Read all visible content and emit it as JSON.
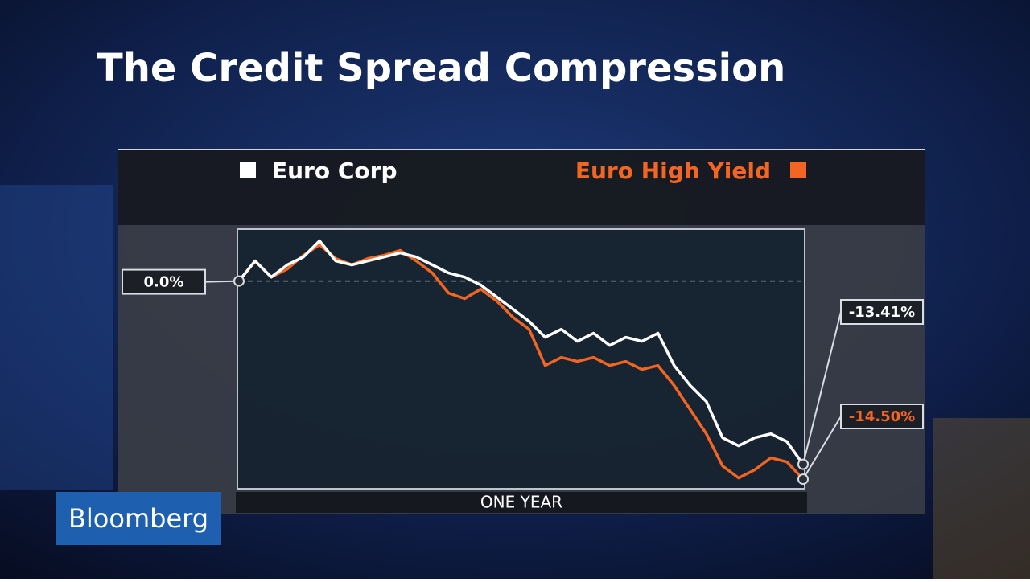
{
  "brand": "Bloomberg",
  "chart_data": {
    "type": "line",
    "title": "The Credit Spread Compression",
    "x_label": "ONE YEAR",
    "ylim": [
      -15.2,
      3.8
    ],
    "series": [
      {
        "name": "Euro Corp",
        "color": "#ffffff",
        "values": [
          0,
          1.47,
          0.29,
          1.18,
          1.76,
          2.94,
          1.47,
          1.18,
          1.47,
          1.76,
          2.06,
          1.76,
          1.18,
          0.59,
          0.29,
          -0.29,
          -1.18,
          -2.06,
          -2.94,
          -4.12,
          -3.53,
          -4.41,
          -3.82,
          -4.71,
          -4.12,
          -4.41,
          -3.82,
          -6.18,
          -7.65,
          -8.82,
          -11.47,
          -12.06,
          -11.47,
          -11.18,
          -11.76,
          -13.41
        ],
        "value_labels": [
          "0.0%",
          null,
          null,
          null,
          null,
          null,
          null,
          null,
          null,
          null,
          null,
          null,
          null,
          null,
          null,
          null,
          null,
          null,
          null,
          null,
          null,
          null,
          null,
          null,
          null,
          null,
          null,
          null,
          null,
          null,
          null,
          null,
          null,
          null,
          null,
          "-13.41%"
        ]
      },
      {
        "name": "Euro High Yield",
        "color": "#f26522",
        "values": [
          0,
          1.47,
          0.29,
          0.88,
          1.88,
          2.65,
          1.65,
          1.18,
          1.65,
          1.88,
          2.24,
          1.47,
          0.59,
          -0.88,
          -1.29,
          -0.59,
          -1.47,
          -2.65,
          -3.53,
          -6.18,
          -5.59,
          -5.88,
          -5.59,
          -6.18,
          -5.88,
          -6.47,
          -6.18,
          -7.65,
          -9.41,
          -11.18,
          -13.53,
          -14.41,
          -13.82,
          -12.94,
          -13.24,
          -14.5
        ],
        "value_labels": [
          null,
          null,
          null,
          null,
          null,
          null,
          null,
          null,
          null,
          null,
          null,
          null,
          null,
          null,
          null,
          null,
          null,
          null,
          null,
          null,
          null,
          null,
          null,
          null,
          null,
          null,
          null,
          null,
          null,
          null,
          null,
          null,
          null,
          null,
          null,
          "-14.50%"
        ]
      }
    ]
  }
}
